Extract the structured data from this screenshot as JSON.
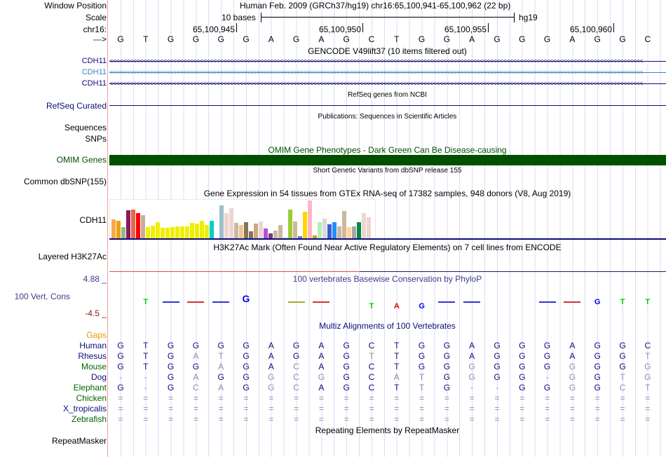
{
  "header": {
    "window_position_label": "Window Position",
    "window_position": "Human Feb. 2009 (GRCh37/hg19)   chr16:65,100,941-65,100,962 (22 bp)",
    "scale_label": "Scale",
    "scale_text": "10 bases",
    "assembly": "hg19",
    "chrom_label": "chr16:",
    "strand_label": "--->",
    "ruler_ticks": [
      "65,100,945",
      "65,100,950",
      "65,100,955",
      "65,100,960"
    ]
  },
  "sequence": "GTGGGGAGAGCTGGAGGGAGGC",
  "tracks": {
    "gencode_title": "GENCODE V49lift37 (10 items filtered out)",
    "gencode_items": [
      "CDH11",
      "CDH11",
      "CDH11"
    ],
    "refseq_title": "RefSeq genes from NCBI",
    "refseq_label": "RefSeq Curated",
    "pubs_title": "Publications: Sequences in Scientific Articles",
    "pubs_labels": [
      "Sequences",
      "SNPs"
    ],
    "omim_title": "OMIM Gene Phenotypes - Dark Green Can Be Disease-causing",
    "omim_label": "OMIM Genes",
    "dbsnp_title": "Short Genetic Variants from dbSNP release 155",
    "dbsnp_label": "Common dbSNP(155)",
    "gtex_title": "Gene Expression in 54 tissues from GTEx RNA-seq of 17382 samples, 948 donors (V8, Aug 2019)",
    "gtex_label": "CDH11",
    "h3k_title": "H3K27Ac Mark (Often Found Near Active Regulatory Elements) on 7 cell lines from ENCODE",
    "h3k_label": "Layered H3K27Ac",
    "phylop_title": "100 vertebrates Basewise Conservation by PhyloP",
    "phylop_label": "100 Vert. Cons",
    "phylop_max": "4.88 _",
    "phylop_min": "-4.5 _",
    "multiz_title": "Multiz Alignments of 100 Vertebrates",
    "gaps_label": "Gaps",
    "rmsk_title": "Repeating Elements by RepeatMasker",
    "rmsk_label": "RepeatMasker"
  },
  "gtex_bars": [
    [
      0.51,
      "#f8a84d"
    ],
    [
      0.47,
      "#f0a10a"
    ],
    [
      0.31,
      "#8fbc8f"
    ],
    [
      0.75,
      "#8b1a5a"
    ],
    [
      0.76,
      "#e8654a"
    ],
    [
      0.67,
      "#ff0000"
    ],
    [
      0.62,
      "#c8ad99"
    ],
    [
      0.31,
      "#eeee00"
    ],
    [
      0.35,
      "#eeee00"
    ],
    [
      0.44,
      "#eeee00"
    ],
    [
      0.29,
      "#eeee00"
    ],
    [
      0.29,
      "#eeee00"
    ],
    [
      0.31,
      "#eeee00"
    ],
    [
      0.33,
      "#eeee00"
    ],
    [
      0.33,
      "#eeee00"
    ],
    [
      0.33,
      "#eeee00"
    ],
    [
      0.42,
      "#eeee00"
    ],
    [
      0.4,
      "#eeee00"
    ],
    [
      0.47,
      "#eeee00"
    ],
    [
      0.36,
      "#eeee00"
    ],
    [
      0.47,
      "#00cdcd"
    ],
    [
      0,
      "#ffffff"
    ],
    [
      0.87,
      "#9ebfcf"
    ],
    [
      0.67,
      "#eed5d2"
    ],
    [
      0.8,
      "#eed5d2"
    ],
    [
      0.42,
      "#cdb79e"
    ],
    [
      0.36,
      "#eec591"
    ],
    [
      0.44,
      "#8b7355"
    ],
    [
      0.2,
      "#8b7355"
    ],
    [
      0.4,
      "#cdaa7d"
    ],
    [
      0.45,
      "#eed5d2"
    ],
    [
      0.27,
      "#b452cd"
    ],
    [
      0.15,
      "#7a378b"
    ],
    [
      0.22,
      "#cdb79e"
    ],
    [
      0.36,
      "#cdb79e"
    ],
    [
      0.04,
      "#cdb79e"
    ],
    [
      0.76,
      "#9acd32"
    ],
    [
      0.45,
      "#cdb79e"
    ],
    [
      0.07,
      "#7b68ee"
    ],
    [
      0.71,
      "#ffd700"
    ],
    [
      1.0,
      "#ffb6c1"
    ],
    [
      0.09,
      "#cd9b1d"
    ],
    [
      0.44,
      "#b4eeb4"
    ],
    [
      0.53,
      "#d9d9d9"
    ],
    [
      0.38,
      "#3a5fcd"
    ],
    [
      0.44,
      "#1e90ff"
    ],
    [
      0.33,
      "#cdb79e"
    ],
    [
      0.73,
      "#cdb79e"
    ],
    [
      0.31,
      "#ffd39b"
    ],
    [
      0.33,
      "#a6a6a6"
    ],
    [
      0.44,
      "#008b45"
    ],
    [
      0.67,
      "#eed5d2"
    ],
    [
      0.56,
      "#eed5d2"
    ]
  ],
  "phylop": [
    [
      1,
      "T",
      "#00cc00"
    ],
    [
      2,
      "-",
      "#3333cc"
    ],
    [
      3,
      "-",
      "#cc3333"
    ],
    [
      4,
      "-",
      "#3333cc"
    ],
    [
      5,
      "G",
      "#0000ee"
    ],
    [
      7,
      "-",
      "#aaaa33"
    ],
    [
      8,
      "-",
      "#cc3333"
    ],
    [
      10,
      "T",
      "#00cc00"
    ],
    [
      11,
      "A",
      "#ee0000"
    ],
    [
      12,
      "G",
      "#0000ee"
    ],
    [
      13,
      "-",
      "#3333cc"
    ],
    [
      14,
      "-",
      "#3333cc"
    ],
    [
      17,
      "-",
      "#3333cc"
    ],
    [
      18,
      "-",
      "#cc3333"
    ],
    [
      19,
      "G",
      "#0000ee"
    ],
    [
      20,
      "T",
      "#00cc00"
    ],
    [
      21,
      "T",
      "#00cc00"
    ]
  ],
  "alignment": [
    {
      "species": "Human",
      "color": "#0c0c78",
      "seq": "GTGGGGAGAGCTGGAGGGAGGC"
    },
    {
      "species": "Rhesus",
      "color": "#0c0c78",
      "seq": "GTGatGAGAGtTGGAGGGAGGt"
    },
    {
      "species": "Mouse",
      "color": "#006400",
      "seq": "GTGGaGAcAGCTGGgGGGgGGg"
    },
    {
      "species": "Dog",
      "color": "#0c0c78",
      "seq": "--GaGGgcgGCatGgGG-gGtg"
    },
    {
      "species": "Elephant",
      "color": "#006400",
      "seq": "G-GcaGgcAGCTtG--GGgGct"
    },
    {
      "species": "Chicken",
      "color": "#006400",
      "seq": "======================"
    },
    {
      "species": "X_tropicalis",
      "color": "#0c0c78",
      "seq": "======================"
    },
    {
      "species": "Zebrafish",
      "color": "#006400",
      "seq": "======================"
    }
  ],
  "colors": {
    "navy": "#0c0c78",
    "omim": "#005000",
    "gaps": "#e69b00",
    "cons": "#3c3c8c",
    "min": "#8b1a1a"
  }
}
